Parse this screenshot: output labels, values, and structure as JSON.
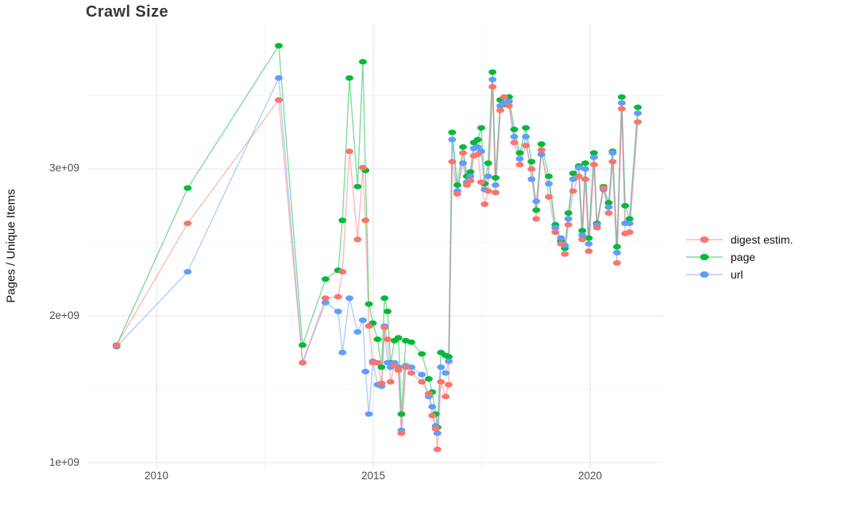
{
  "title": "Crawl Size",
  "y_axis": {
    "label": "Pages / Unique Items",
    "ticks": [
      "1e+09",
      "2e+09",
      "3e+09"
    ]
  },
  "x_axis": {
    "ticks": [
      "2010",
      "2015",
      "2020"
    ]
  },
  "legend": {
    "items": [
      {
        "label": "digest estim.",
        "color": "#F8766D"
      },
      {
        "label": "page",
        "color": "#00BA38"
      },
      {
        "label": "url",
        "color": "#619CFF"
      }
    ]
  },
  "colors": {
    "digest": "#F8766D",
    "page": "#00BA38",
    "url": "#619CFF",
    "grid_major": "#e9e9e9",
    "grid_minor": "#f4f4f4",
    "tick_text": "#4d4d4d",
    "title_text": "#383838"
  },
  "chart_data": {
    "type": "line",
    "title": "Crawl Size",
    "xlabel": "",
    "ylabel": "Pages / Unique Items",
    "value_unit": "billions (1e9)",
    "x_range": [
      2008.55,
      2021.85
    ],
    "y_range_billions": [
      0.96,
      3.99
    ],
    "grid": "on",
    "legend_position": "right",
    "x_major_gridlines": [
      2010,
      2015,
      2020
    ],
    "x_minor_gridlines": [
      2012.5,
      2017.5
    ],
    "y_major_gridlines_billions": [
      1,
      2,
      3
    ],
    "y_minor_gridlines_billions": [
      1.5,
      2.5,
      3.5
    ],
    "marker": "ellipse-dot",
    "series": [
      {
        "name": "page",
        "color": "#00BA38",
        "points": [
          [
            2009.08,
            1.8
          ],
          [
            2010.72,
            2.87
          ],
          [
            2012.82,
            3.84
          ],
          [
            2013.37,
            1.8
          ],
          [
            2013.9,
            2.25
          ],
          [
            2014.19,
            2.31
          ],
          [
            2014.29,
            2.65
          ],
          [
            2014.45,
            3.62
          ],
          [
            2014.64,
            2.88
          ],
          [
            2014.76,
            3.73
          ],
          [
            2014.82,
            2.99
          ],
          [
            2014.9,
            2.08
          ],
          [
            2014.99,
            1.95
          ],
          [
            2015.1,
            1.84
          ],
          [
            2015.19,
            1.65
          ],
          [
            2015.26,
            2.12
          ],
          [
            2015.33,
            2.03
          ],
          [
            2015.4,
            1.68
          ],
          [
            2015.49,
            1.83
          ],
          [
            2015.58,
            1.85
          ],
          [
            2015.65,
            1.33
          ],
          [
            2015.75,
            1.83
          ],
          [
            2015.88,
            1.82
          ],
          [
            2016.12,
            1.74
          ],
          [
            2016.28,
            1.57
          ],
          [
            2016.36,
            1.48
          ],
          [
            2016.44,
            1.33
          ],
          [
            2016.48,
            1.24
          ],
          [
            2016.56,
            1.75
          ],
          [
            2016.67,
            1.73
          ],
          [
            2016.74,
            1.72
          ],
          [
            2016.82,
            3.25
          ],
          [
            2016.94,
            2.89
          ],
          [
            2017.07,
            3.15
          ],
          [
            2017.16,
            2.95
          ],
          [
            2017.24,
            2.98
          ],
          [
            2017.32,
            3.18
          ],
          [
            2017.41,
            3.2
          ],
          [
            2017.49,
            3.28
          ],
          [
            2017.57,
            2.9
          ],
          [
            2017.65,
            3.04
          ],
          [
            2017.75,
            3.66
          ],
          [
            2017.82,
            2.94
          ],
          [
            2017.93,
            3.47
          ],
          [
            2018.02,
            3.44
          ],
          [
            2018.13,
            3.49
          ],
          [
            2018.25,
            3.27
          ],
          [
            2018.38,
            3.11
          ],
          [
            2018.52,
            3.28
          ],
          [
            2018.65,
            3.05
          ],
          [
            2018.76,
            2.72
          ],
          [
            2018.88,
            3.17
          ],
          [
            2019.05,
            2.95
          ],
          [
            2019.2,
            2.62
          ],
          [
            2019.33,
            2.51
          ],
          [
            2019.42,
            2.46
          ],
          [
            2019.5,
            2.7
          ],
          [
            2019.61,
            2.97
          ],
          [
            2019.74,
            3.02
          ],
          [
            2019.82,
            2.58
          ],
          [
            2019.89,
            3.04
          ],
          [
            2019.97,
            2.53
          ],
          [
            2020.09,
            3.11
          ],
          [
            2020.16,
            2.63
          ],
          [
            2020.31,
            2.88
          ],
          [
            2020.43,
            2.77
          ],
          [
            2020.52,
            3.12
          ],
          [
            2020.62,
            2.47
          ],
          [
            2020.73,
            3.49
          ],
          [
            2020.81,
            2.75
          ],
          [
            2020.91,
            2.66
          ],
          [
            2021.1,
            3.42
          ]
        ]
      },
      {
        "name": "url",
        "color": "#619CFF",
        "points": [
          [
            2009.08,
            1.79
          ],
          [
            2010.72,
            2.3
          ],
          [
            2012.82,
            3.62
          ],
          [
            2013.37,
            1.68
          ],
          [
            2013.9,
            2.09
          ],
          [
            2014.19,
            2.03
          ],
          [
            2014.29,
            1.75
          ],
          [
            2014.45,
            2.12
          ],
          [
            2014.64,
            1.89
          ],
          [
            2014.76,
            1.97
          ],
          [
            2014.82,
            1.62
          ],
          [
            2014.9,
            1.33
          ],
          [
            2014.99,
            1.69
          ],
          [
            2015.1,
            1.53
          ],
          [
            2015.19,
            1.52
          ],
          [
            2015.26,
            1.93
          ],
          [
            2015.33,
            1.68
          ],
          [
            2015.4,
            1.65
          ],
          [
            2015.49,
            1.68
          ],
          [
            2015.58,
            1.65
          ],
          [
            2015.65,
            1.22
          ],
          [
            2015.75,
            1.66
          ],
          [
            2015.88,
            1.65
          ],
          [
            2016.12,
            1.6
          ],
          [
            2016.28,
            1.45
          ],
          [
            2016.36,
            1.38
          ],
          [
            2016.44,
            1.25
          ],
          [
            2016.48,
            1.2
          ],
          [
            2016.56,
            1.65
          ],
          [
            2016.67,
            1.61
          ],
          [
            2016.74,
            1.69
          ],
          [
            2016.82,
            3.2
          ],
          [
            2016.94,
            2.85
          ],
          [
            2017.07,
            3.04
          ],
          [
            2017.16,
            2.91
          ],
          [
            2017.24,
            2.95
          ],
          [
            2017.32,
            3.14
          ],
          [
            2017.41,
            3.15
          ],
          [
            2017.49,
            3.12
          ],
          [
            2017.57,
            2.86
          ],
          [
            2017.65,
            2.95
          ],
          [
            2017.75,
            3.61
          ],
          [
            2017.82,
            2.89
          ],
          [
            2017.93,
            3.43
          ],
          [
            2018.02,
            3.45
          ],
          [
            2018.13,
            3.46
          ],
          [
            2018.25,
            3.22
          ],
          [
            2018.38,
            3.07
          ],
          [
            2018.52,
            3.22
          ],
          [
            2018.65,
            2.93
          ],
          [
            2018.76,
            2.78
          ],
          [
            2018.88,
            3.1
          ],
          [
            2019.05,
            2.9
          ],
          [
            2019.2,
            2.6
          ],
          [
            2019.33,
            2.53
          ],
          [
            2019.42,
            2.48
          ],
          [
            2019.5,
            2.66
          ],
          [
            2019.61,
            2.93
          ],
          [
            2019.74,
            3.01
          ],
          [
            2019.82,
            2.55
          ],
          [
            2019.89,
            3.0
          ],
          [
            2019.97,
            2.49
          ],
          [
            2020.09,
            3.08
          ],
          [
            2020.16,
            2.62
          ],
          [
            2020.31,
            2.86
          ],
          [
            2020.43,
            2.74
          ],
          [
            2020.52,
            3.11
          ],
          [
            2020.62,
            2.43
          ],
          [
            2020.73,
            3.45
          ],
          [
            2020.81,
            2.63
          ],
          [
            2020.91,
            2.63
          ],
          [
            2021.1,
            3.38
          ]
        ]
      },
      {
        "name": "digest estim.",
        "color": "#F8766D",
        "points": [
          [
            2009.08,
            1.8
          ],
          [
            2010.72,
            2.63
          ],
          [
            2012.82,
            3.47
          ],
          [
            2013.37,
            1.68
          ],
          [
            2013.9,
            2.12
          ],
          [
            2014.19,
            2.13
          ],
          [
            2014.29,
            2.3
          ],
          [
            2014.45,
            3.12
          ],
          [
            2014.64,
            2.52
          ],
          [
            2014.76,
            3.01
          ],
          [
            2014.82,
            2.65
          ],
          [
            2014.9,
            1.93
          ],
          [
            2014.99,
            1.68
          ],
          [
            2015.1,
            1.68
          ],
          [
            2015.19,
            1.54
          ],
          [
            2015.26,
            1.92
          ],
          [
            2015.33,
            1.84
          ],
          [
            2015.4,
            1.55
          ],
          [
            2015.49,
            1.66
          ],
          [
            2015.58,
            1.63
          ],
          [
            2015.65,
            1.2
          ],
          [
            2015.75,
            1.65
          ],
          [
            2015.88,
            1.61
          ],
          [
            2016.12,
            1.55
          ],
          [
            2016.28,
            1.47
          ],
          [
            2016.36,
            1.32
          ],
          [
            2016.44,
            1.23
          ],
          [
            2016.48,
            1.09
          ],
          [
            2016.56,
            1.55
          ],
          [
            2016.67,
            1.45
          ],
          [
            2016.74,
            1.53
          ],
          [
            2016.82,
            3.05
          ],
          [
            2016.94,
            2.83
          ],
          [
            2017.07,
            3.11
          ],
          [
            2017.16,
            2.89
          ],
          [
            2017.24,
            2.92
          ],
          [
            2017.32,
            3.09
          ],
          [
            2017.41,
            3.1
          ],
          [
            2017.49,
            2.91
          ],
          [
            2017.57,
            2.76
          ],
          [
            2017.65,
            2.85
          ],
          [
            2017.75,
            3.56
          ],
          [
            2017.82,
            2.84
          ],
          [
            2017.93,
            3.4
          ],
          [
            2018.02,
            3.49
          ],
          [
            2018.13,
            3.43
          ],
          [
            2018.25,
            3.18
          ],
          [
            2018.38,
            3.03
          ],
          [
            2018.52,
            3.16
          ],
          [
            2018.65,
            3.0
          ],
          [
            2018.76,
            2.66
          ],
          [
            2018.88,
            3.13
          ],
          [
            2019.05,
            2.81
          ],
          [
            2019.2,
            2.57
          ],
          [
            2019.33,
            2.49
          ],
          [
            2019.42,
            2.42
          ],
          [
            2019.5,
            2.62
          ],
          [
            2019.61,
            2.85
          ],
          [
            2019.74,
            2.95
          ],
          [
            2019.82,
            2.52
          ],
          [
            2019.89,
            2.93
          ],
          [
            2019.97,
            2.44
          ],
          [
            2020.09,
            3.03
          ],
          [
            2020.16,
            2.6
          ],
          [
            2020.31,
            2.87
          ],
          [
            2020.43,
            2.7
          ],
          [
            2020.52,
            3.05
          ],
          [
            2020.62,
            2.36
          ],
          [
            2020.73,
            3.41
          ],
          [
            2020.81,
            2.56
          ],
          [
            2020.91,
            2.57
          ],
          [
            2021.1,
            3.32
          ]
        ]
      }
    ]
  }
}
